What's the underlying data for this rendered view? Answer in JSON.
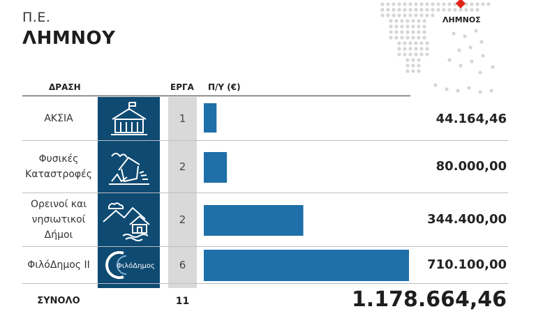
{
  "header": {
    "prefix": "Π.Ε.",
    "title": "ΛΗΜΝΟΥ",
    "map_label": "ΛΗΜΝΟΣ"
  },
  "columns": {
    "action": "ΔΡΑΣΗ",
    "projects": "ΕΡΓΑ",
    "budget": "Π/Υ (€)"
  },
  "rows": [
    {
      "label": "ΑΚΣΙΑ",
      "icon": "house-building-icon",
      "projects": "1",
      "amount": "44.164,46"
    },
    {
      "label": "Φυσικές Καταστροφές",
      "icon": "collapsing-house-icon",
      "projects": "2",
      "amount": "80.000,00"
    },
    {
      "label": "Ορεινοί και νησιωτικοί Δήμοι",
      "icon": "mountain-island-house-icon",
      "projects": "2",
      "amount": "344.400,00"
    },
    {
      "label": "ΦιλόΔημος ΙΙ",
      "icon": "filodimos-logo-icon",
      "icon_text": "ΦιλόΔημος",
      "projects": "6",
      "amount": "710.100,00"
    }
  ],
  "total": {
    "label": "ΣΥΝΟΛΟ",
    "projects": "11",
    "amount": "1.178.664,46"
  },
  "colors": {
    "bar": "#1f6fa8",
    "icon_bg": "#0e4a72",
    "count_bg": "#d9d9d9",
    "map_dot": "#d6d6d6",
    "map_marker": "#e2231a"
  },
  "chart_data": {
    "type": "bar",
    "orientation": "horizontal",
    "categories": [
      "ΑΚΣΙΑ",
      "Φυσικές Καταστροφές",
      "Ορεινοί και νησιωτικοί Δήμοι",
      "ΦιλόΔημος ΙΙ"
    ],
    "values": [
      44164.46,
      80000.0,
      344400.0,
      710100.0
    ],
    "projects": [
      1,
      2,
      2,
      6
    ],
    "total": 1178664.46,
    "total_projects": 11,
    "xlabel": "Π/Υ (€)",
    "ylabel": "ΔΡΑΣΗ",
    "xlim": [
      0,
      710100
    ]
  }
}
